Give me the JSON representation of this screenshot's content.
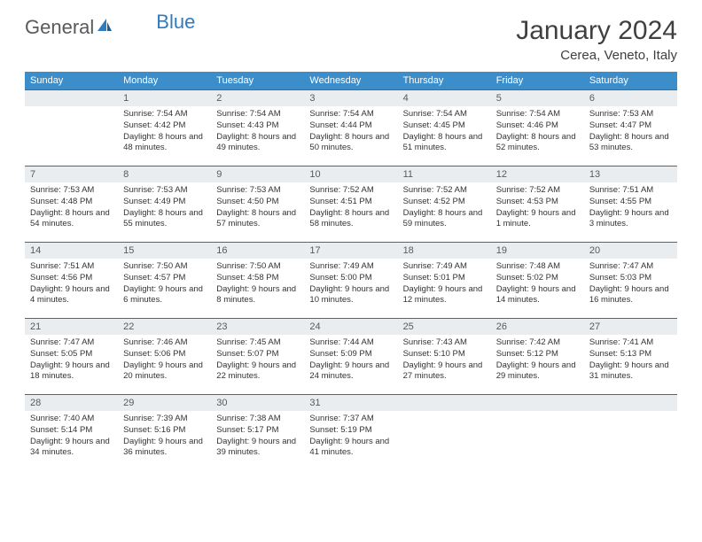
{
  "brand": {
    "part1": "General",
    "part2": "Blue"
  },
  "title": "January 2024",
  "location": "Cerea, Veneto, Italy",
  "colors": {
    "header_bg": "#3c8ecb",
    "header_text": "#ffffff",
    "daynum_bg": "#e9edf0",
    "border": "#2f6fa3",
    "body_text": "#333333",
    "title_text": "#404040",
    "logo_gray": "#5a5a5a",
    "logo_blue": "#2f7bbf"
  },
  "weekdays": [
    "Sunday",
    "Monday",
    "Tuesday",
    "Wednesday",
    "Thursday",
    "Friday",
    "Saturday"
  ],
  "days": {
    "1": {
      "sunrise": "7:54 AM",
      "sunset": "4:42 PM",
      "daylight": "8 hours and 48 minutes."
    },
    "2": {
      "sunrise": "7:54 AM",
      "sunset": "4:43 PM",
      "daylight": "8 hours and 49 minutes."
    },
    "3": {
      "sunrise": "7:54 AM",
      "sunset": "4:44 PM",
      "daylight": "8 hours and 50 minutes."
    },
    "4": {
      "sunrise": "7:54 AM",
      "sunset": "4:45 PM",
      "daylight": "8 hours and 51 minutes."
    },
    "5": {
      "sunrise": "7:54 AM",
      "sunset": "4:46 PM",
      "daylight": "8 hours and 52 minutes."
    },
    "6": {
      "sunrise": "7:53 AM",
      "sunset": "4:47 PM",
      "daylight": "8 hours and 53 minutes."
    },
    "7": {
      "sunrise": "7:53 AM",
      "sunset": "4:48 PM",
      "daylight": "8 hours and 54 minutes."
    },
    "8": {
      "sunrise": "7:53 AM",
      "sunset": "4:49 PM",
      "daylight": "8 hours and 55 minutes."
    },
    "9": {
      "sunrise": "7:53 AM",
      "sunset": "4:50 PM",
      "daylight": "8 hours and 57 minutes."
    },
    "10": {
      "sunrise": "7:52 AM",
      "sunset": "4:51 PM",
      "daylight": "8 hours and 58 minutes."
    },
    "11": {
      "sunrise": "7:52 AM",
      "sunset": "4:52 PM",
      "daylight": "8 hours and 59 minutes."
    },
    "12": {
      "sunrise": "7:52 AM",
      "sunset": "4:53 PM",
      "daylight": "9 hours and 1 minute."
    },
    "13": {
      "sunrise": "7:51 AM",
      "sunset": "4:55 PM",
      "daylight": "9 hours and 3 minutes."
    },
    "14": {
      "sunrise": "7:51 AM",
      "sunset": "4:56 PM",
      "daylight": "9 hours and 4 minutes."
    },
    "15": {
      "sunrise": "7:50 AM",
      "sunset": "4:57 PM",
      "daylight": "9 hours and 6 minutes."
    },
    "16": {
      "sunrise": "7:50 AM",
      "sunset": "4:58 PM",
      "daylight": "9 hours and 8 minutes."
    },
    "17": {
      "sunrise": "7:49 AM",
      "sunset": "5:00 PM",
      "daylight": "9 hours and 10 minutes."
    },
    "18": {
      "sunrise": "7:49 AM",
      "sunset": "5:01 PM",
      "daylight": "9 hours and 12 minutes."
    },
    "19": {
      "sunrise": "7:48 AM",
      "sunset": "5:02 PM",
      "daylight": "9 hours and 14 minutes."
    },
    "20": {
      "sunrise": "7:47 AM",
      "sunset": "5:03 PM",
      "daylight": "9 hours and 16 minutes."
    },
    "21": {
      "sunrise": "7:47 AM",
      "sunset": "5:05 PM",
      "daylight": "9 hours and 18 minutes."
    },
    "22": {
      "sunrise": "7:46 AM",
      "sunset": "5:06 PM",
      "daylight": "9 hours and 20 minutes."
    },
    "23": {
      "sunrise": "7:45 AM",
      "sunset": "5:07 PM",
      "daylight": "9 hours and 22 minutes."
    },
    "24": {
      "sunrise": "7:44 AM",
      "sunset": "5:09 PM",
      "daylight": "9 hours and 24 minutes."
    },
    "25": {
      "sunrise": "7:43 AM",
      "sunset": "5:10 PM",
      "daylight": "9 hours and 27 minutes."
    },
    "26": {
      "sunrise": "7:42 AM",
      "sunset": "5:12 PM",
      "daylight": "9 hours and 29 minutes."
    },
    "27": {
      "sunrise": "7:41 AM",
      "sunset": "5:13 PM",
      "daylight": "9 hours and 31 minutes."
    },
    "28": {
      "sunrise": "7:40 AM",
      "sunset": "5:14 PM",
      "daylight": "9 hours and 34 minutes."
    },
    "29": {
      "sunrise": "7:39 AM",
      "sunset": "5:16 PM",
      "daylight": "9 hours and 36 minutes."
    },
    "30": {
      "sunrise": "7:38 AM",
      "sunset": "5:17 PM",
      "daylight": "9 hours and 39 minutes."
    },
    "31": {
      "sunrise": "7:37 AM",
      "sunset": "5:19 PM",
      "daylight": "9 hours and 41 minutes."
    }
  },
  "layout": {
    "start_weekday": 1,
    "num_days": 31,
    "labels": {
      "sunrise": "Sunrise: ",
      "sunset": "Sunset: ",
      "daylight": "Daylight: "
    }
  }
}
